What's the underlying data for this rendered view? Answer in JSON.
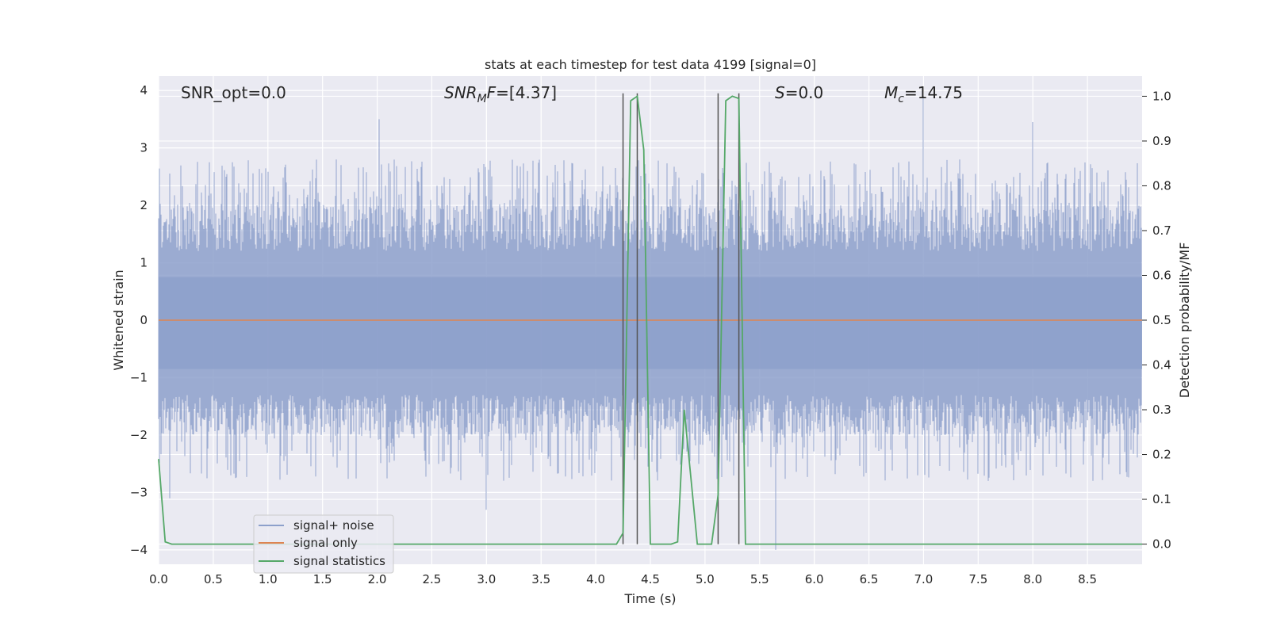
{
  "chart_data": {
    "type": "line",
    "title": "stats at each timestep for test data 4199 [signal=0]",
    "xlabel": "Time (s)",
    "ylabel": "Whitened strain",
    "ylabel_right": "Detection probability/MF",
    "xlim": [
      0,
      9.0
    ],
    "ylim": [
      -4.25,
      4.25
    ],
    "ylim_right": [
      -0.045,
      1.045
    ],
    "x_ticks": [
      "0.0",
      "0.5",
      "1.0",
      "1.5",
      "2.0",
      "2.5",
      "3.0",
      "3.5",
      "4.0",
      "4.5",
      "5.0",
      "5.5",
      "6.0",
      "6.5",
      "7.0",
      "7.5",
      "8.0",
      "8.5"
    ],
    "y_ticks": [
      "4",
      "3",
      "2",
      "1",
      "0",
      "−1",
      "−2",
      "−3",
      "−4"
    ],
    "y_ticks_right": [
      "1.0",
      "0.9",
      "0.8",
      "0.7",
      "0.6",
      "0.5",
      "0.4",
      "0.3",
      "0.2",
      "0.1",
      "0.0"
    ],
    "grid": true,
    "legend_position": "lower-left",
    "annotations": {
      "snr_opt": "SNR_opt=0.0",
      "snr_mf_main": "SNR",
      "snr_mf_sub": "M",
      "snr_mf_rest": "F=[4.37]",
      "s_main": "S",
      "s_rest": "=0.0",
      "mc_main": "M",
      "mc_sub": "c",
      "mc_rest": "=14.75"
    },
    "series": [
      {
        "name": "signal+ noise",
        "color": "#8da0cb",
        "style": "noisy band",
        "band_core": [
          -0.85,
          0.75
        ],
        "notable_peaks": [
          [
            2.02,
            3.5
          ],
          [
            7.0,
            3.9
          ],
          [
            8.0,
            3.45
          ],
          [
            5.65,
            -4.0
          ],
          [
            0.1,
            -3.1
          ],
          [
            3.0,
            -3.3
          ]
        ]
      },
      {
        "name": "signal only",
        "color": "#dd8452",
        "x": [
          0.0,
          9.0
        ],
        "y": [
          0.0,
          0.0
        ]
      },
      {
        "name": "signal statistics",
        "color": "#55a868",
        "axis": "right",
        "x": [
          0.0,
          0.06,
          0.12,
          4.19,
          4.25,
          4.32,
          4.38,
          4.44,
          4.5,
          4.56,
          4.62,
          4.69,
          4.75,
          4.81,
          4.87,
          4.93,
          5.0,
          5.06,
          5.12,
          5.19,
          5.25,
          5.31,
          5.37,
          5.43,
          5.5,
          9.0
        ],
        "y": [
          0.19,
          0.005,
          0.0,
          0.0,
          0.025,
          0.99,
          1.0,
          0.88,
          0.0,
          0.0,
          0.0,
          0.0,
          0.005,
          0.3,
          0.15,
          0.0,
          0.0,
          0.0,
          0.11,
          0.99,
          1.0,
          0.995,
          0.0,
          0.0,
          0.0,
          0.0
        ]
      }
    ],
    "vertical_lines": [
      4.25,
      4.38,
      5.12,
      5.31
    ]
  }
}
